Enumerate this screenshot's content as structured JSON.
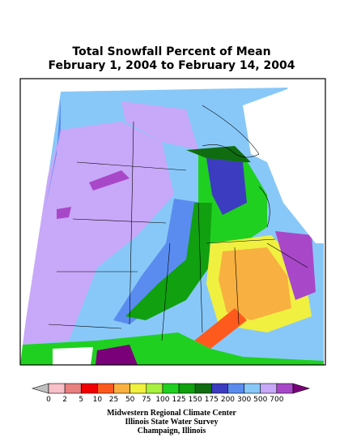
{
  "header": {
    "title": "Total Snowfall Percent of Mean",
    "subtitle": "February 1, 2004 to February 14, 2004"
  },
  "legend": {
    "labels": [
      0,
      2,
      5,
      10,
      25,
      50,
      75,
      100,
      125,
      150,
      175,
      200,
      300,
      500,
      700
    ],
    "below_color": "#c0c0c0",
    "above_color": "#7a007a",
    "colors": [
      "#f8c0c8",
      "#e88080",
      "#f00000",
      "#ff5a1e",
      "#f8b040",
      "#f0f040",
      "#a8f040",
      "#20d020",
      "#10a010",
      "#106c10",
      "#3c3cc0",
      "#5a8cf0",
      "#88c8f8",
      "#c8a8f8",
      "#a848c8"
    ]
  },
  "credits": [
    "Midwestern Regional Climate Center",
    "Illinois State Water Survey",
    "Champaign, Illinois"
  ]
}
